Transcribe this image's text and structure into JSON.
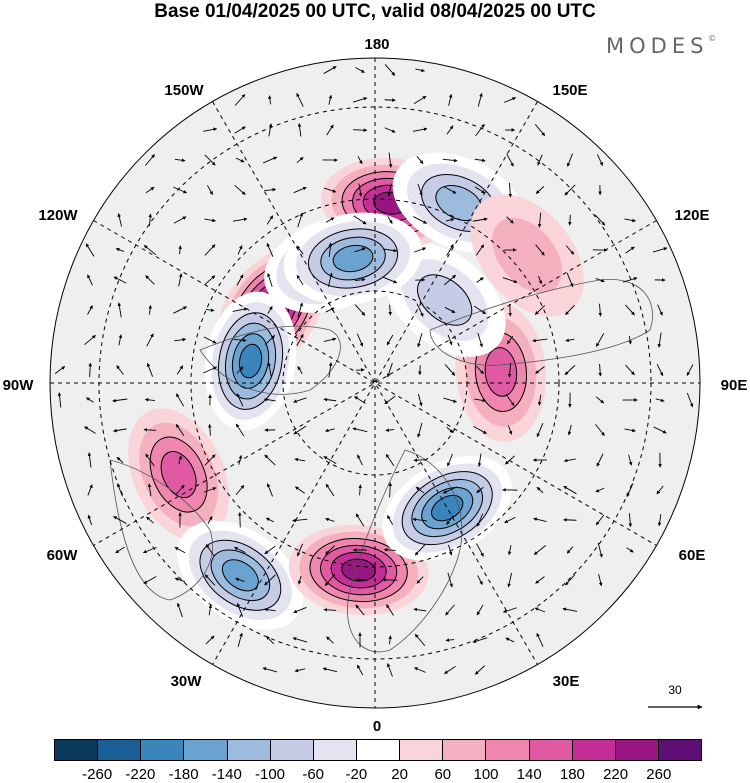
{
  "title": "Base 01/04/2025 00 UTC, valid 08/04/2025 00 UTC",
  "brand": "MODES",
  "brand_mark": "©",
  "longitude_labels": {
    "top": "180",
    "bottom": "0",
    "left": "90W",
    "right": "90E",
    "upper_left_1": "150W",
    "upper_left_2": "120W",
    "upper_right_1": "150E",
    "upper_right_2": "120E",
    "lower_left_1": "60W",
    "lower_left_2": "30W",
    "lower_right_1": "60E",
    "lower_right_2": "30E"
  },
  "reference_vector": "30",
  "colorbar": {
    "colors": [
      "#0b3a5f",
      "#1a5f96",
      "#3b85bd",
      "#6aa3cf",
      "#9dbbdd",
      "#c6cce6",
      "#e4e4f1",
      "#ffffff",
      "#f9d4d9",
      "#f5b0c0",
      "#ef86ad",
      "#e05aa3",
      "#c42e96",
      "#97167f",
      "#5e0f73"
    ],
    "ticks": [
      "-260",
      "-220",
      "-180",
      "-140",
      "-100",
      "-60",
      "-20",
      "20",
      "60",
      "100",
      "140",
      "180",
      "220",
      "260"
    ]
  },
  "anomaly_centers": [
    {
      "lon": -125,
      "lat": 55,
      "value": 260
    },
    {
      "lon": -100,
      "lat": 55,
      "value": -220
    },
    {
      "lon": -160,
      "lat": 55,
      "value": -180
    },
    {
      "lon": -65,
      "lat": 30,
      "value": 140
    },
    {
      "lon": -35,
      "lat": 25,
      "value": -200
    },
    {
      "lon": -5,
      "lat": 38,
      "value": 220
    },
    {
      "lon": 30,
      "lat": 50,
      "value": -240
    },
    {
      "lon": 95,
      "lat": 55,
      "value": 140
    },
    {
      "lon": 140,
      "lat": 60,
      "value": -120
    },
    {
      "lon": 175,
      "lat": 40,
      "value": 220
    },
    {
      "lon": -170,
      "lat": 55,
      "value": -200
    },
    {
      "lon": 155,
      "lat": 35,
      "value": -140
    },
    {
      "lon": 130,
      "lat": 35,
      "value": 60
    }
  ]
}
